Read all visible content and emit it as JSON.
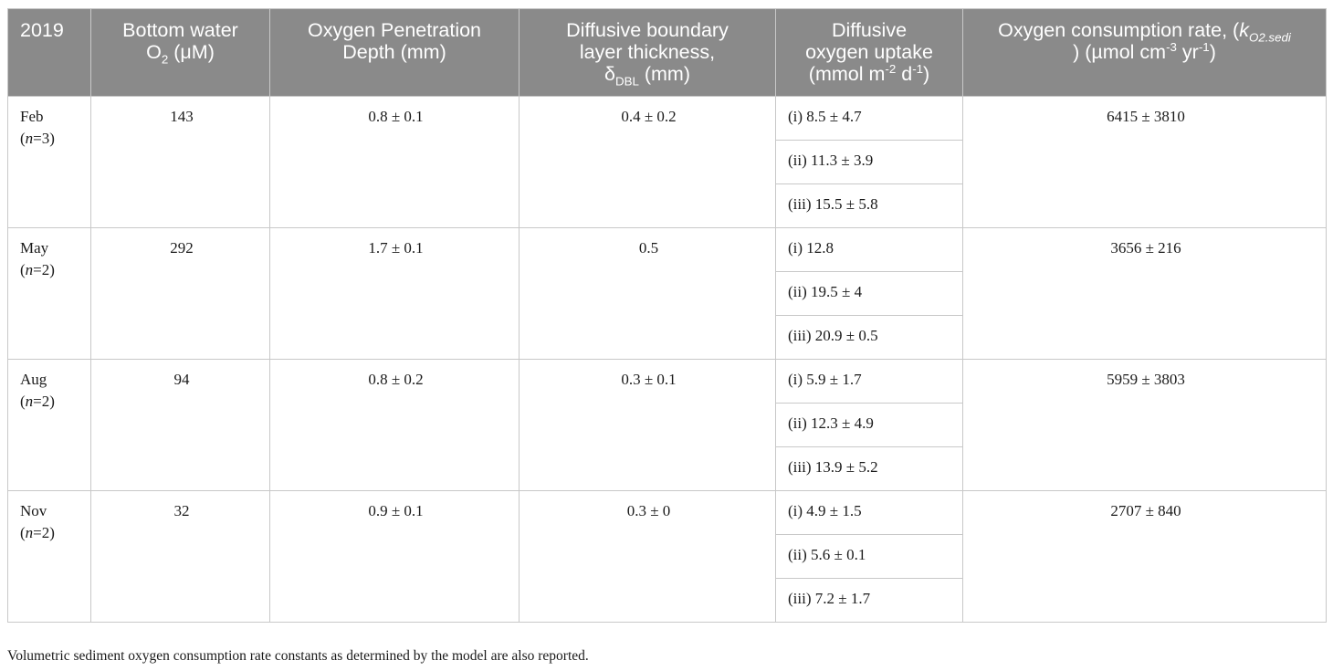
{
  "header": {
    "col1": "2019",
    "col2_a": "Bottom water",
    "col2_b": "O",
    "col2_sub": "2",
    "col2_c": " (μM)",
    "col3_a": "Oxygen Penetration",
    "col3_b": "Depth (mm)",
    "col4_a": "Diffusive boundary",
    "col4_b": "layer thickness,",
    "col4_c": "δ",
    "col4_sub": "DBL",
    "col4_d": " (mm)",
    "col5_a": "Diffusive",
    "col5_b": "oxygen uptake",
    "col5_c": "(mmol m",
    "col5_sup1": "-2",
    "col5_d": " d",
    "col5_sup2": "-1",
    "col5_e": ")",
    "col6_a": "Oxygen consumption rate, (",
    "col6_k": "k",
    "col6_ksub": "O2.sedi",
    "col6_b": ") (µmol cm",
    "col6_sup1": "-3",
    "col6_c": " yr",
    "col6_sup2": "-1",
    "col6_d": ")"
  },
  "rows": [
    {
      "month": "Feb",
      "n_open": "(",
      "n_var": "n",
      "n_rest": "=3)",
      "bottom_o2": "143",
      "penetration": "0.8 ± 0.1",
      "dbl": "0.4 ± 0.2",
      "uptake": [
        "(i) 8.5 ± 4.7",
        "(ii) 11.3 ± 3.9",
        "(iii) 15.5 ± 5.8"
      ],
      "consumption": "6415 ± 3810"
    },
    {
      "month": "May",
      "n_open": "(",
      "n_var": "n",
      "n_rest": "=2)",
      "bottom_o2": "292",
      "penetration": "1.7 ± 0.1",
      "dbl": "0.5",
      "uptake": [
        "(i) 12.8",
        "(ii) 19.5 ± 4",
        "(iii) 20.9 ± 0.5"
      ],
      "consumption": "3656 ± 216"
    },
    {
      "month": "Aug",
      "n_open": "(",
      "n_var": "n",
      "n_rest": "=2)",
      "bottom_o2": "94",
      "penetration": "0.8 ± 0.2",
      "dbl": "0.3 ± 0.1",
      "uptake": [
        "(i) 5.9 ± 1.7",
        "(ii) 12.3 ± 4.9",
        "(iii) 13.9 ± 5.2"
      ],
      "consumption": "5959 ± 3803"
    },
    {
      "month": "Nov",
      "n_open": "(",
      "n_var": "n",
      "n_rest": "=2)",
      "bottom_o2": "32",
      "penetration": "0.9 ± 0.1",
      "dbl": "0.3 ± 0",
      "uptake": [
        "(i) 4.9 ± 1.5",
        "(ii) 5.6 ± 0.1",
        "(iii) 7.2 ± 1.7"
      ],
      "consumption": "2707 ± 840"
    }
  ],
  "footnote": "Volumetric sediment oxygen consumption rate constants as determined by the model are also reported.",
  "colors": {
    "header_bg": "#8a8a8a",
    "header_text": "#ffffff",
    "border": "#c8c8c8"
  }
}
